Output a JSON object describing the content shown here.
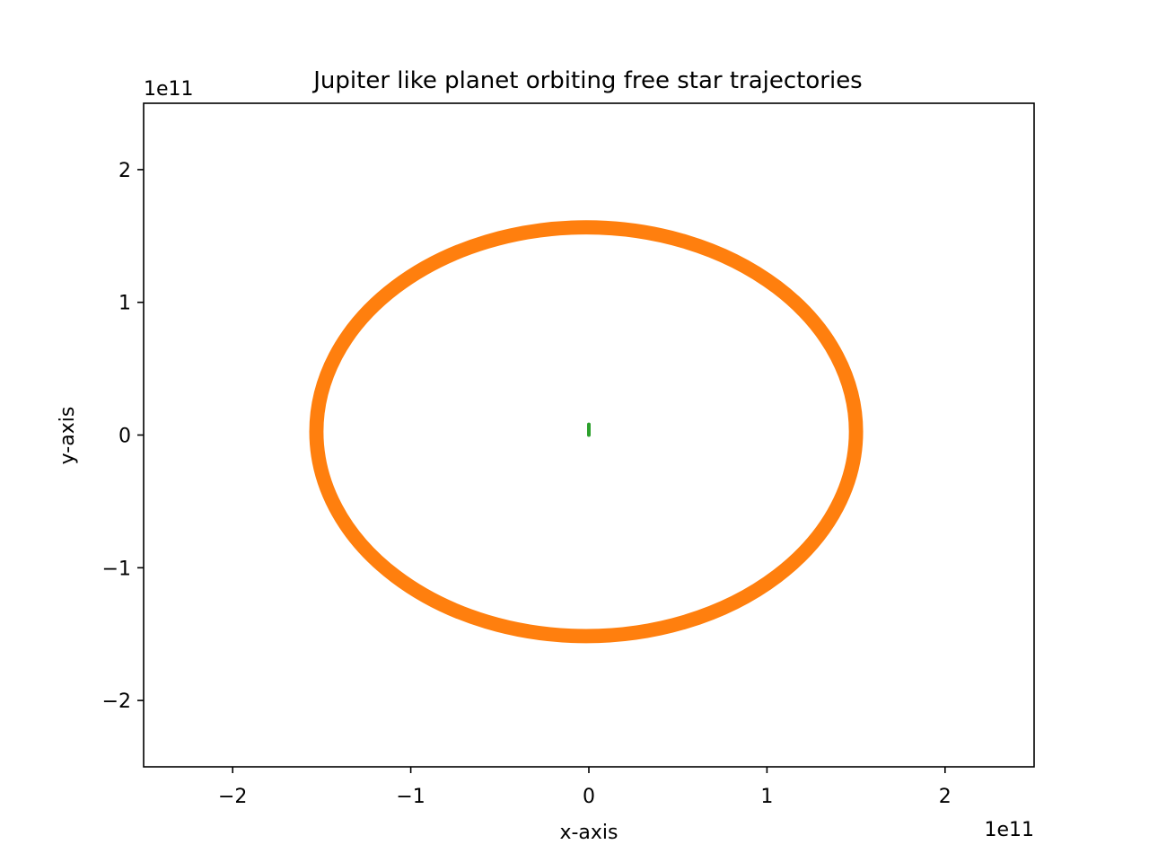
{
  "chart_data": {
    "type": "line",
    "title": "Jupiter like planet orbiting free star trajectories",
    "xlabel": "x-axis",
    "ylabel": "y-axis",
    "x_offset_text": "1e11",
    "y_offset_text": "1e11",
    "xlim": [
      -250000000000.0,
      250000000000.0
    ],
    "ylim": [
      -250000000000.0,
      250000000000.0
    ],
    "x_ticks": [
      -200000000000.0,
      -100000000000.0,
      0,
      100000000000.0,
      200000000000.0
    ],
    "x_tick_labels": [
      "−2",
      "−1",
      "0",
      "1",
      "2"
    ],
    "y_ticks": [
      -200000000000.0,
      -100000000000.0,
      0,
      100000000000.0,
      200000000000.0
    ],
    "y_tick_labels": [
      "−2",
      "−1",
      "0",
      "1",
      "2"
    ],
    "grid": false,
    "legend": "none",
    "series": [
      {
        "color": "#ff7f0e",
        "shape": "ellipse",
        "center": [
          -1500000000.0,
          2500000000.0
        ],
        "radius_x": 151500000000.0,
        "radius_y": 154000000000.0,
        "band_width": 8000000000.0
      },
      {
        "color": "#2ca02c",
        "shape": "segment",
        "x": [
          0,
          0
        ],
        "y": [
          0,
          8000000000.0
        ]
      }
    ]
  }
}
